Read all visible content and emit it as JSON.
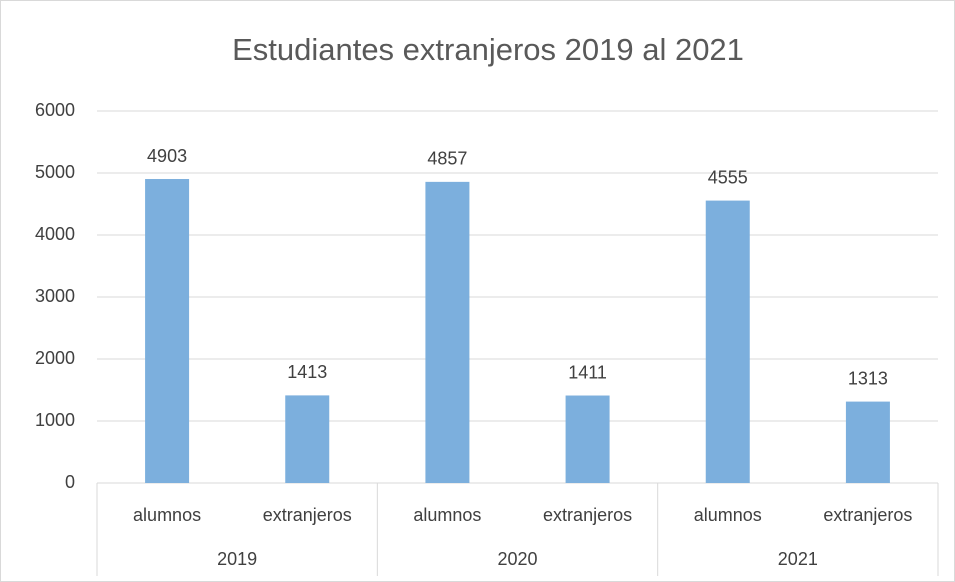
{
  "chart_data": {
    "type": "bar",
    "title": "Estudiantes extranjeros 2019 al 2021",
    "categories": [
      "alumnos",
      "extranjeros",
      "alumnos",
      "extranjeros",
      "alumnos",
      "extranjeros"
    ],
    "groups": [
      "2019",
      "2020",
      "2021"
    ],
    "values": [
      4903,
      1413,
      4857,
      1411,
      4555,
      1313
    ],
    "color": "#7cafdd",
    "ylim": [
      0,
      6000
    ],
    "yticks": [
      0,
      1000,
      2000,
      3000,
      4000,
      5000,
      6000
    ],
    "grid": true
  }
}
